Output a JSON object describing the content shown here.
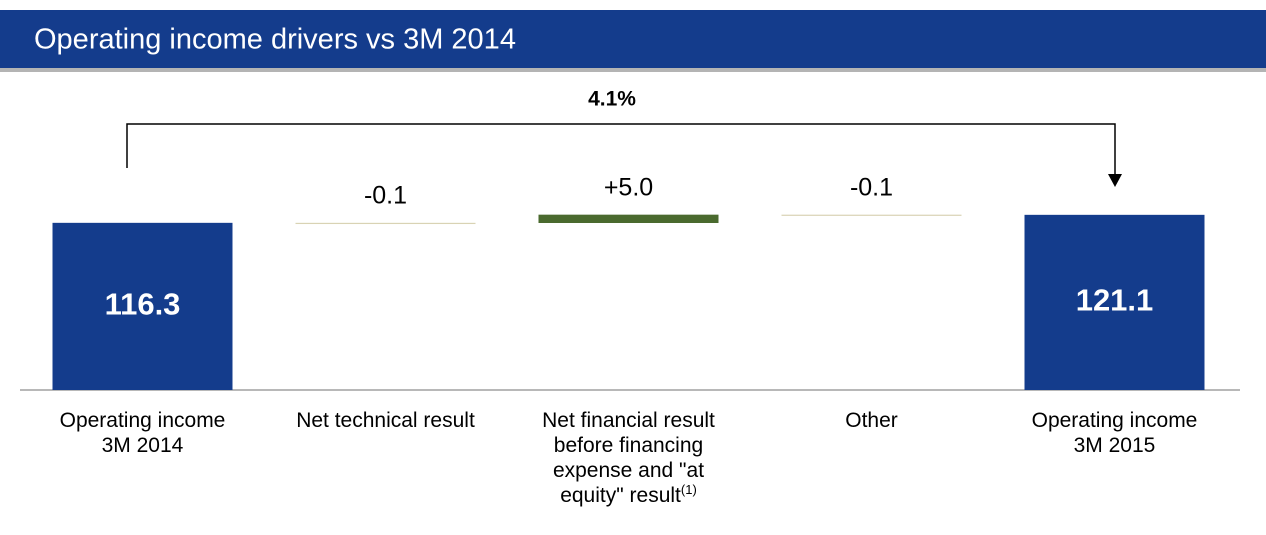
{
  "chart_data": {
    "type": "waterfall",
    "title": "Operating income drivers vs 3M 2014",
    "categories": [
      "Operating income 3M 2014",
      "Net technical result",
      "Net financial result before financing expense and \"at equity\" result",
      "Other",
      "Operating income 3M 2015"
    ],
    "footnote_mark": "(1)",
    "values": [
      116.3,
      -0.1,
      5.0,
      -0.1,
      121.1
    ],
    "value_labels": [
      "116.3",
      "-0.1",
      "+5.0",
      "-0.1",
      "121.1"
    ],
    "totals": [
      true,
      false,
      false,
      false,
      true
    ],
    "colors": {
      "total": "#143c8c",
      "increase": "#4a6a2e",
      "decrease": "#d9d3b4"
    },
    "annotation": "4.1%",
    "ylim": [
      16,
      166
    ]
  }
}
